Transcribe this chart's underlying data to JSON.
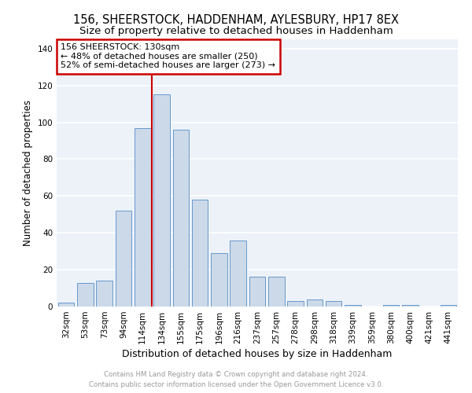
{
  "title": "156, SHEERSTOCK, HADDENHAM, AYLESBURY, HP17 8EX",
  "subtitle": "Size of property relative to detached houses in Haddenham",
  "xlabel": "Distribution of detached houses by size in Haddenham",
  "ylabel": "Number of detached properties",
  "footer_line1": "Contains HM Land Registry data © Crown copyright and database right 2024.",
  "footer_line2": "Contains public sector information licensed under the Open Government Licence v3.0.",
  "bar_labels": [
    "32sqm",
    "53sqm",
    "73sqm",
    "94sqm",
    "114sqm",
    "134sqm",
    "155sqm",
    "175sqm",
    "196sqm",
    "216sqm",
    "237sqm",
    "257sqm",
    "278sqm",
    "298sqm",
    "318sqm",
    "339sqm",
    "359sqm",
    "380sqm",
    "400sqm",
    "421sqm",
    "441sqm"
  ],
  "bar_values": [
    2,
    13,
    14,
    52,
    97,
    115,
    96,
    58,
    29,
    36,
    16,
    16,
    3,
    4,
    3,
    1,
    0,
    1,
    1,
    0,
    1
  ],
  "bar_color": "#ccd9e8",
  "bar_edgecolor": "#6699cc",
  "vline_x": 4.5,
  "vline_color": "#cc0000",
  "annotation_text": "156 SHEERSTOCK: 130sqm\n← 48% of detached houses are smaller (250)\n52% of semi-detached houses are larger (273) →",
  "ylim": [
    0,
    145
  ],
  "yticks": [
    0,
    20,
    40,
    60,
    80,
    100,
    120,
    140
  ],
  "background_color": "#edf2f9",
  "grid_color": "#d0d8e4",
  "title_fontsize": 10.5,
  "subtitle_fontsize": 9.5,
  "xlabel_fontsize": 9,
  "ylabel_fontsize": 8.5,
  "tick_fontsize": 7.5,
  "annotation_fontsize": 8
}
